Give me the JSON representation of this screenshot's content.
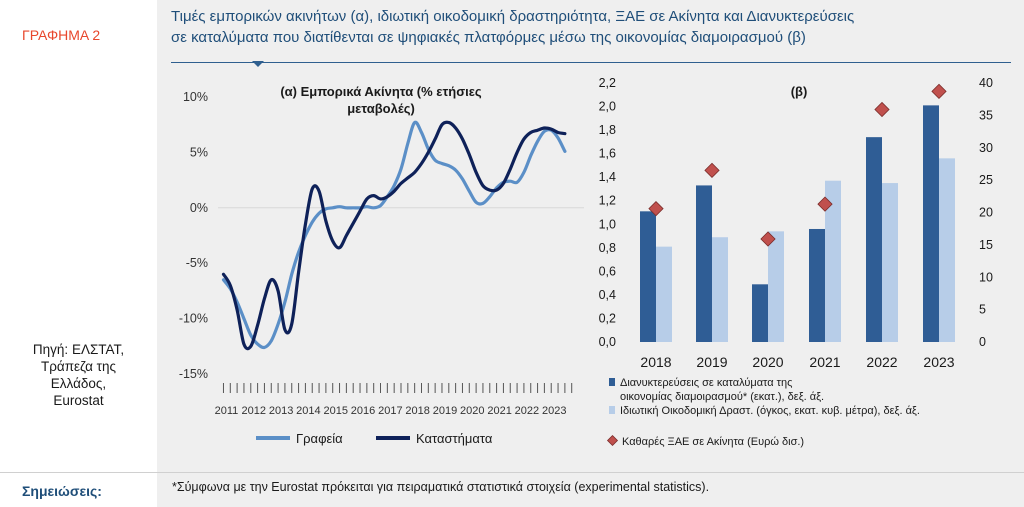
{
  "figure": {
    "label": "ΓΡΑΦΗΜΑ 2",
    "title_line1": "Τιμές εμπορικών ακινήτων (α), ιδιωτική οικοδομική δραστηριότητα, ΞΑΕ σε Ακίνητα και Διανυκτερεύσεις",
    "title_line2": "σε καταλύματα που διατίθενται σε ψηφιακές πλατφόρμες μέσω της οικονομίας διαμοιρασμού (β)",
    "source_lines": [
      "Πηγή: ΕΛΣΤΑΤ,",
      "Τράπεζα της",
      "Ελλάδος,",
      "Eurostat"
    ],
    "notes_label": "Σημειώσεις:",
    "notes_text": "*Σύμφωνα με την Eurostat πρόκειται για πειραματικά στατιστικά στοιχεία (experimental statistics)."
  },
  "chart_data": [
    {
      "type": "line",
      "title_line1": "(α) Εμπορικά Ακίνητα (% ετήσιες",
      "title_line2": "μεταβολές)",
      "ylim": [
        -15,
        10
      ],
      "yticks": [
        "10%",
        "5%",
        "0%",
        "-5%",
        "-10%",
        "-15%"
      ],
      "ytick_values": [
        10,
        5,
        0,
        -5,
        -10,
        -15
      ],
      "xlim": [
        2010.8,
        2024.2
      ],
      "year_labels": [
        "2011",
        "2012",
        "2013",
        "2014",
        "2015",
        "2016",
        "2017",
        "2018",
        "2019",
        "2020",
        "2021",
        "2022",
        "2023"
      ],
      "series": [
        {
          "name": "Γραφεία",
          "color": "#5b8fc7",
          "points": [
            [
              2011.0,
              -6.5
            ],
            [
              2011.25,
              -7.3
            ],
            [
              2011.5,
              -8.5
            ],
            [
              2011.75,
              -10.0
            ],
            [
              2012.0,
              -11.5
            ],
            [
              2012.25,
              -12.3
            ],
            [
              2012.5,
              -12.6
            ],
            [
              2012.75,
              -12.0
            ],
            [
              2013.0,
              -10.5
            ],
            [
              2013.25,
              -8.5
            ],
            [
              2013.5,
              -6.0
            ],
            [
              2013.75,
              -4.0
            ],
            [
              2014.0,
              -2.5
            ],
            [
              2014.25,
              -1.3
            ],
            [
              2014.5,
              -0.5
            ],
            [
              2014.75,
              -0.1
            ],
            [
              2015.0,
              0.0
            ],
            [
              2015.25,
              0.1
            ],
            [
              2015.5,
              0.0
            ],
            [
              2015.75,
              0.0
            ],
            [
              2016.0,
              0.0
            ],
            [
              2016.25,
              0.1
            ],
            [
              2016.5,
              0.0
            ],
            [
              2016.75,
              0.2
            ],
            [
              2017.0,
              1.0
            ],
            [
              2017.25,
              2.0
            ],
            [
              2017.5,
              3.5
            ],
            [
              2017.75,
              5.8
            ],
            [
              2018.0,
              7.7
            ],
            [
              2018.25,
              6.8
            ],
            [
              2018.5,
              5.3
            ],
            [
              2018.75,
              4.3
            ],
            [
              2019.0,
              4.0
            ],
            [
              2019.25,
              3.8
            ],
            [
              2019.5,
              3.4
            ],
            [
              2019.75,
              2.6
            ],
            [
              2020.0,
              1.5
            ],
            [
              2020.25,
              0.5
            ],
            [
              2020.5,
              0.4
            ],
            [
              2020.75,
              1.0
            ],
            [
              2021.0,
              1.8
            ],
            [
              2021.25,
              2.3
            ],
            [
              2021.5,
              2.4
            ],
            [
              2021.75,
              2.3
            ],
            [
              2022.0,
              3.2
            ],
            [
              2022.25,
              4.7
            ],
            [
              2022.5,
              6.0
            ],
            [
              2022.75,
              6.9
            ],
            [
              2023.0,
              7.0
            ],
            [
              2023.25,
              6.3
            ],
            [
              2023.5,
              5.1
            ]
          ]
        },
        {
          "name": "Καταστήματα",
          "color": "#0e2159",
          "points": [
            [
              2011.0,
              -6.0
            ],
            [
              2011.25,
              -7.0
            ],
            [
              2011.5,
              -9.2
            ],
            [
              2011.75,
              -12.3
            ],
            [
              2012.0,
              -12.5
            ],
            [
              2012.25,
              -10.6
            ],
            [
              2012.5,
              -8.2
            ],
            [
              2012.75,
              -6.5
            ],
            [
              2013.0,
              -7.5
            ],
            [
              2013.25,
              -11.0
            ],
            [
              2013.5,
              -10.5
            ],
            [
              2013.75,
              -5.8
            ],
            [
              2014.0,
              -1.5
            ],
            [
              2014.25,
              1.7
            ],
            [
              2014.5,
              1.5
            ],
            [
              2014.75,
              -1.2
            ],
            [
              2015.0,
              -3.0
            ],
            [
              2015.25,
              -3.6
            ],
            [
              2015.5,
              -2.5
            ],
            [
              2015.75,
              -1.4
            ],
            [
              2016.0,
              -0.3
            ],
            [
              2016.25,
              0.8
            ],
            [
              2016.5,
              1.1
            ],
            [
              2016.75,
              0.8
            ],
            [
              2017.0,
              1.0
            ],
            [
              2017.25,
              1.5
            ],
            [
              2017.5,
              2.2
            ],
            [
              2017.75,
              2.7
            ],
            [
              2018.0,
              3.2
            ],
            [
              2018.25,
              4.0
            ],
            [
              2018.5,
              5.0
            ],
            [
              2018.75,
              6.2
            ],
            [
              2019.0,
              7.5
            ],
            [
              2019.25,
              7.7
            ],
            [
              2019.5,
              7.2
            ],
            [
              2019.75,
              6.2
            ],
            [
              2020.0,
              4.8
            ],
            [
              2020.25,
              3.2
            ],
            [
              2020.5,
              2.0
            ],
            [
              2020.75,
              1.6
            ],
            [
              2021.0,
              1.6
            ],
            [
              2021.25,
              2.2
            ],
            [
              2021.5,
              3.5
            ],
            [
              2021.75,
              5.0
            ],
            [
              2022.0,
              6.2
            ],
            [
              2022.25,
              6.8
            ],
            [
              2022.5,
              7.0
            ],
            [
              2022.75,
              7.2
            ],
            [
              2023.0,
              7.1
            ],
            [
              2023.25,
              6.8
            ],
            [
              2023.5,
              6.7
            ]
          ]
        }
      ]
    },
    {
      "type": "bar",
      "title": "(β)",
      "categories": [
        "2018",
        "2019",
        "2020",
        "2021",
        "2022",
        "2023"
      ],
      "ylim_left": [
        0,
        2.2
      ],
      "yticks_left": [
        "2,2",
        "2,0",
        "1,8",
        "1,6",
        "1,4",
        "1,2",
        "1,0",
        "0,8",
        "0,6",
        "0,4",
        "0,2",
        "0,0"
      ],
      "ytick_left_values": [
        2.2,
        2.0,
        1.8,
        1.6,
        1.4,
        1.2,
        1.0,
        0.8,
        0.6,
        0.4,
        0.2,
        0.0
      ],
      "ylim_right": [
        0,
        40
      ],
      "yticks_right": [
        "40",
        "35",
        "30",
        "25",
        "20",
        "15",
        "10",
        "5",
        "0"
      ],
      "ytick_right_values": [
        40,
        35,
        30,
        25,
        20,
        15,
        10,
        5,
        0
      ],
      "series": [
        {
          "name_line1": "Διανυκτερεύσεις σε καταλύματα της",
          "name_line2": "οικονομίας διαμοιρασμού* (εκατ.), δεξ. άξ.",
          "axis": "left",
          "color": "#2f5d95",
          "values": [
            1.11,
            1.33,
            0.49,
            0.96,
            1.74,
            2.01
          ]
        },
        {
          "name": "Ιδιωτική Οικοδομική Δραστ. (όγκος, εκατ. κυβ. μέτρα), δεξ. άξ.",
          "axis": "left",
          "color": "#b7cde8",
          "values": [
            0.81,
            0.89,
            0.94,
            1.37,
            1.35,
            1.56
          ]
        },
        {
          "name": "Καθαρές ΞΑΕ σε Ακίνητα (Ευρώ δισ.)",
          "axis": "right",
          "color": "#c0504d",
          "values": [
            20.6,
            26.5,
            15.9,
            21.3,
            35.9,
            38.7
          ]
        }
      ]
    }
  ]
}
